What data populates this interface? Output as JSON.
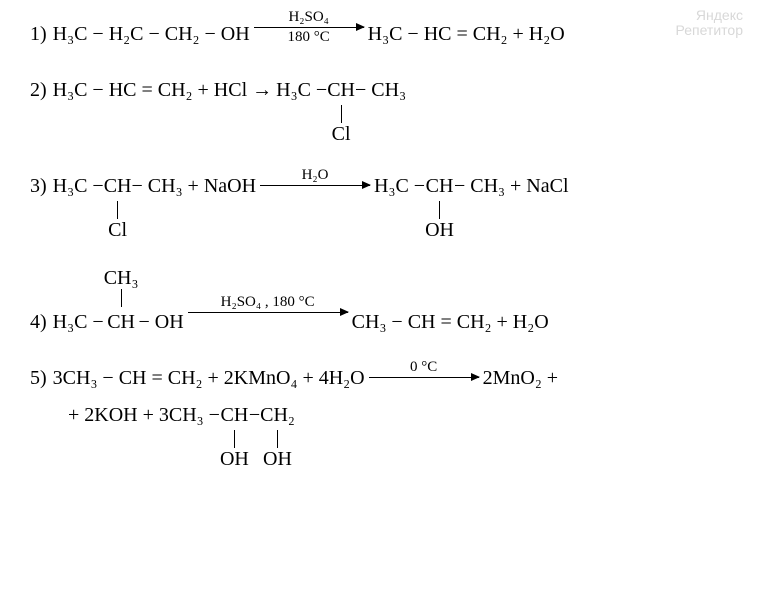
{
  "watermark": {
    "l1": "Яндекс",
    "l2": "Репетитор"
  },
  "rxn1": {
    "num": "1)",
    "lhs": "H₃C − H₂C − CH₂ − OH",
    "arrow_top": "H₂SO₄",
    "arrow_bot": "180 °C",
    "arrow_w": 110,
    "rhs": "H₃C − HC = CH₂ + H₂O"
  },
  "rxn2": {
    "num": "2)",
    "lhs": "H₃C − HC = CH₂ +  HCl →",
    "p_pre": "H₃C − ",
    "p_ch": "CH",
    "p_sub": "Cl",
    "p_post": " − CH₃"
  },
  "rxn3": {
    "num": "3)",
    "l_pre": "H₃C − ",
    "l_ch": "CH",
    "l_sub": "Cl",
    "l_post": " − CH₃ +  NaOH",
    "arrow_top": "H₂O",
    "arrow_w": 110,
    "r_pre": "H₃C − ",
    "r_ch": "CH",
    "r_sub": "OH",
    "r_post": " − CH₃ + NaCl"
  },
  "rxn4": {
    "num": "4)",
    "l_pre": "H₃C − ",
    "l_ch": "CH",
    "l_sup": "CH₃",
    "l_post": " − OH",
    "arrow_top": "H₂SO₄ , 180 °C",
    "arrow_w": 160,
    "rhs": "CH₃ − CH = CH₂ + H₂O"
  },
  "rxn5": {
    "num": "5)",
    "lhs": "3CH₃ − CH = CH₂ + 2KMnO₄ + 4H₂O",
    "arrow_top": "0 °C",
    "arrow_w": 110,
    "rhs1": "2MnO₂ +",
    "line2_pre": "+ 2KOH + 3CH₃ − ",
    "ch1": "CH",
    "ch1_sub": "OH",
    "mid": " − ",
    "ch2": "CH₂",
    "ch2_sub": "OH"
  }
}
